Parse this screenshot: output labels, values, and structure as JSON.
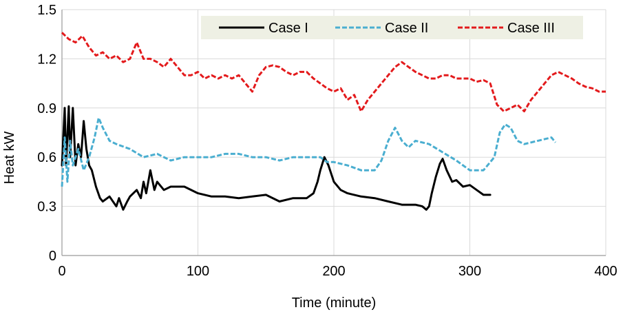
{
  "chart_data": {
    "type": "line",
    "title": "",
    "xlabel": "Time (minute)",
    "ylabel": "Heat kW",
    "xlim": [
      0,
      400
    ],
    "ylim": [
      0,
      1.5
    ],
    "xticks": [
      0,
      100,
      200,
      300,
      400
    ],
    "yticks": [
      0,
      0.3,
      0.6,
      0.9,
      1.2,
      1.5
    ],
    "ytick_labels": [
      "0",
      "0.3",
      "0.6",
      "0.9",
      "1.2",
      "1.5"
    ],
    "grid": true,
    "legend_position": "top-right",
    "series": [
      {
        "name": "Case I",
        "color": "#000000",
        "dash": "solid",
        "x": [
          0,
          2,
          3,
          5,
          6,
          8,
          10,
          12,
          14,
          16,
          18,
          20,
          22,
          25,
          28,
          30,
          35,
          40,
          42,
          45,
          48,
          50,
          55,
          58,
          60,
          62,
          65,
          68,
          70,
          75,
          80,
          90,
          100,
          110,
          120,
          130,
          140,
          150,
          160,
          170,
          180,
          185,
          188,
          190,
          193,
          196,
          200,
          205,
          210,
          220,
          230,
          240,
          250,
          260,
          265,
          268,
          270,
          272,
          275,
          278,
          280,
          283,
          287,
          290,
          295,
          300,
          305,
          310,
          315
        ],
        "y": [
          0.55,
          0.9,
          0.55,
          0.91,
          0.6,
          0.9,
          0.55,
          0.68,
          0.6,
          0.82,
          0.65,
          0.55,
          0.52,
          0.42,
          0.35,
          0.33,
          0.36,
          0.3,
          0.35,
          0.28,
          0.33,
          0.36,
          0.4,
          0.35,
          0.45,
          0.38,
          0.52,
          0.4,
          0.45,
          0.4,
          0.42,
          0.42,
          0.38,
          0.36,
          0.36,
          0.35,
          0.36,
          0.37,
          0.33,
          0.35,
          0.35,
          0.38,
          0.45,
          0.52,
          0.6,
          0.55,
          0.45,
          0.4,
          0.38,
          0.36,
          0.35,
          0.33,
          0.31,
          0.31,
          0.3,
          0.28,
          0.3,
          0.38,
          0.48,
          0.56,
          0.59,
          0.52,
          0.45,
          0.46,
          0.42,
          0.43,
          0.4,
          0.37,
          0.37
        ]
      },
      {
        "name": "Case II",
        "color": "#4aaed0",
        "dash": "dashed",
        "x": [
          0,
          2,
          4,
          6,
          8,
          12,
          16,
          20,
          24,
          27,
          30,
          35,
          40,
          50,
          60,
          70,
          80,
          90,
          100,
          110,
          120,
          130,
          140,
          150,
          160,
          170,
          180,
          190,
          195,
          200,
          210,
          220,
          230,
          235,
          240,
          245,
          250,
          255,
          260,
          270,
          280,
          290,
          300,
          310,
          318,
          322,
          326,
          330,
          335,
          340,
          350,
          360,
          363
        ],
        "y": [
          0.42,
          0.72,
          0.45,
          0.7,
          0.55,
          0.65,
          0.52,
          0.6,
          0.72,
          0.84,
          0.78,
          0.7,
          0.68,
          0.65,
          0.6,
          0.62,
          0.58,
          0.6,
          0.6,
          0.6,
          0.62,
          0.62,
          0.6,
          0.6,
          0.58,
          0.6,
          0.6,
          0.6,
          0.57,
          0.57,
          0.55,
          0.52,
          0.52,
          0.58,
          0.7,
          0.78,
          0.7,
          0.66,
          0.7,
          0.68,
          0.63,
          0.58,
          0.52,
          0.52,
          0.6,
          0.75,
          0.8,
          0.78,
          0.7,
          0.68,
          0.7,
          0.72,
          0.69
        ]
      },
      {
        "name": "Case III",
        "color": "#e31a1c",
        "dash": "dashed",
        "x": [
          0,
          5,
          10,
          15,
          20,
          25,
          30,
          35,
          40,
          45,
          50,
          55,
          60,
          65,
          70,
          75,
          80,
          85,
          90,
          95,
          100,
          105,
          110,
          115,
          120,
          125,
          130,
          135,
          140,
          145,
          150,
          155,
          160,
          165,
          170,
          175,
          180,
          185,
          190,
          195,
          200,
          205,
          210,
          215,
          220,
          225,
          230,
          235,
          240,
          245,
          250,
          255,
          260,
          265,
          270,
          275,
          280,
          285,
          290,
          295,
          300,
          305,
          310,
          315,
          320,
          325,
          330,
          335,
          340,
          345,
          350,
          355,
          360,
          365,
          370,
          375,
          380,
          385,
          390,
          395,
          400
        ],
        "y": [
          1.36,
          1.32,
          1.3,
          1.34,
          1.27,
          1.22,
          1.24,
          1.2,
          1.22,
          1.18,
          1.2,
          1.3,
          1.2,
          1.2,
          1.18,
          1.15,
          1.2,
          1.15,
          1.1,
          1.1,
          1.12,
          1.08,
          1.1,
          1.08,
          1.1,
          1.08,
          1.1,
          1.05,
          1.0,
          1.1,
          1.15,
          1.16,
          1.15,
          1.12,
          1.1,
          1.12,
          1.12,
          1.08,
          1.05,
          1.02,
          1.0,
          1.02,
          0.95,
          0.98,
          0.88,
          0.95,
          1.0,
          1.05,
          1.1,
          1.15,
          1.18,
          1.15,
          1.12,
          1.1,
          1.08,
          1.08,
          1.1,
          1.1,
          1.08,
          1.08,
          1.08,
          1.06,
          1.07,
          1.05,
          0.92,
          0.88,
          0.9,
          0.92,
          0.88,
          0.95,
          1.0,
          1.05,
          1.1,
          1.12,
          1.1,
          1.08,
          1.05,
          1.03,
          1.02,
          1.0,
          1.0
        ]
      }
    ]
  }
}
